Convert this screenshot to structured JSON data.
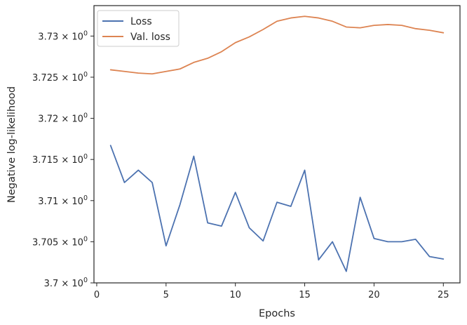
{
  "chart_data": {
    "type": "line",
    "xlabel": "Epochs",
    "ylabel": "Negative log-likelihood",
    "xlim": [
      -0.2,
      26.2
    ],
    "ylim": [
      3.7,
      3.7337
    ],
    "x_ticks": [
      0,
      5,
      10,
      15,
      20,
      25
    ],
    "x_tick_labels": [
      "0",
      "5",
      "10",
      "15",
      "20",
      "25"
    ],
    "y_ticks": [
      {
        "value": 3.7,
        "mantissa": "3.7",
        "exponent": "0"
      },
      {
        "value": 3.705,
        "mantissa": "3.705",
        "exponent": "0"
      },
      {
        "value": 3.71,
        "mantissa": "3.71",
        "exponent": "0"
      },
      {
        "value": 3.715,
        "mantissa": "3.715",
        "exponent": "0"
      },
      {
        "value": 3.72,
        "mantissa": "3.72",
        "exponent": "0"
      },
      {
        "value": 3.725,
        "mantissa": "3.725",
        "exponent": "0"
      },
      {
        "value": 3.73,
        "mantissa": "3.73",
        "exponent": "0"
      }
    ],
    "y_tick_format": "{mantissa} × 10^{exponent}",
    "grid": false,
    "legend_position": "top-left",
    "x": [
      1,
      2,
      3,
      4,
      5,
      6,
      7,
      8,
      9,
      10,
      11,
      12,
      13,
      14,
      15,
      16,
      17,
      18,
      19,
      20,
      21,
      22,
      23,
      24,
      25
    ],
    "series": [
      {
        "name": "Loss",
        "color": "#4c72b0",
        "values": [
          3.7167,
          3.7122,
          3.7137,
          3.7122,
          3.7045,
          3.7095,
          3.7154,
          3.7073,
          3.7069,
          3.711,
          3.7067,
          3.7051,
          3.7098,
          3.7093,
          3.7137,
          3.7028,
          3.705,
          3.7014,
          3.7104,
          3.7054,
          3.705,
          3.705,
          3.7053,
          3.7032,
          3.7029
        ]
      },
      {
        "name": "Val. loss",
        "color": "#dd8452",
        "values": [
          3.7259,
          3.7257,
          3.7255,
          3.7254,
          3.7257,
          3.726,
          3.7268,
          3.7273,
          3.7281,
          3.7292,
          3.7299,
          3.7308,
          3.7318,
          3.7322,
          3.7324,
          3.7322,
          3.7318,
          3.7311,
          3.731,
          3.7313,
          3.7314,
          3.7313,
          3.7309,
          3.7307,
          3.7304
        ]
      }
    ]
  }
}
